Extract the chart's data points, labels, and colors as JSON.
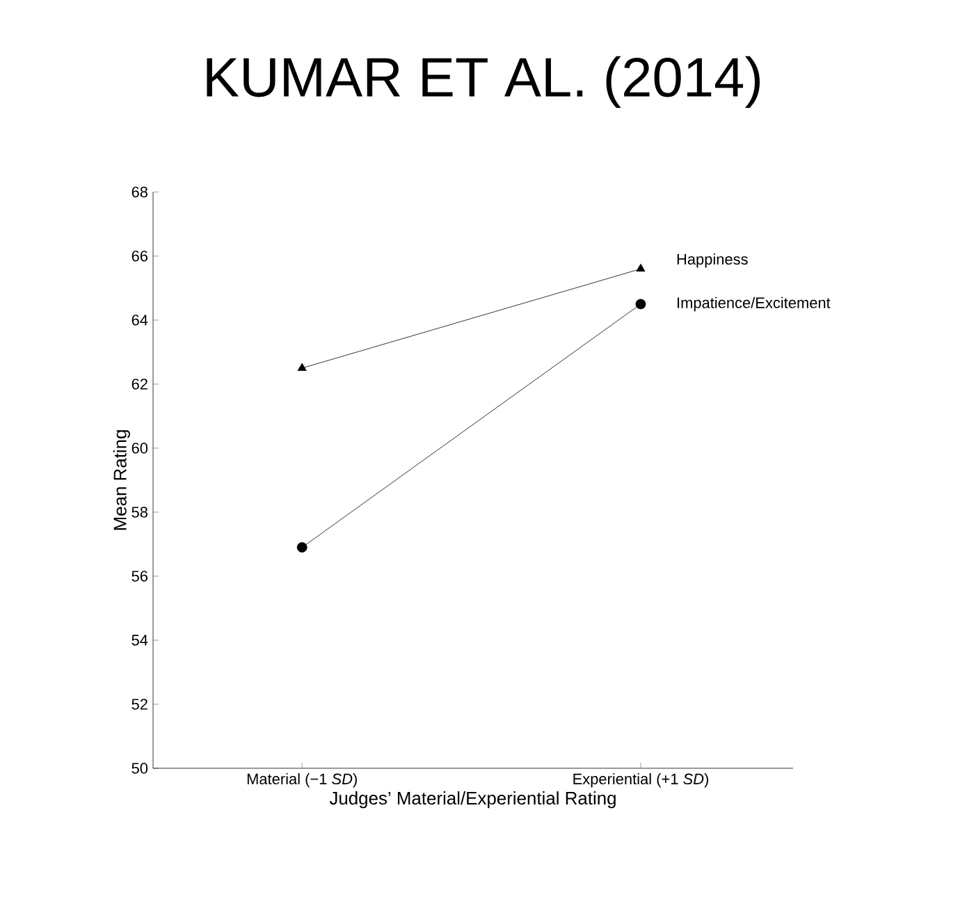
{
  "chart_data": {
    "type": "line",
    "title": "KUMAR ET AL. (2014)",
    "xlabel": "Judges’ Material/Experiential Rating",
    "ylabel": "Mean Rating",
    "categories": [
      "Material (−1 *SD*)",
      "Experiential (+1 *SD*)"
    ],
    "series": [
      {
        "name": "Happiness",
        "color": "#000000",
        "marker": "triangle",
        "values": [
          62.5,
          65.6
        ]
      },
      {
        "name": "Impatience/Excitement",
        "color": "#000000",
        "marker": "circle",
        "values": [
          56.9,
          64.5
        ]
      }
    ],
    "ylim": [
      50,
      68
    ],
    "yticks": [
      50,
      52,
      54,
      56,
      58,
      60,
      62,
      64,
      66,
      68
    ],
    "grid": false,
    "legend": false,
    "line_style": "solid"
  }
}
